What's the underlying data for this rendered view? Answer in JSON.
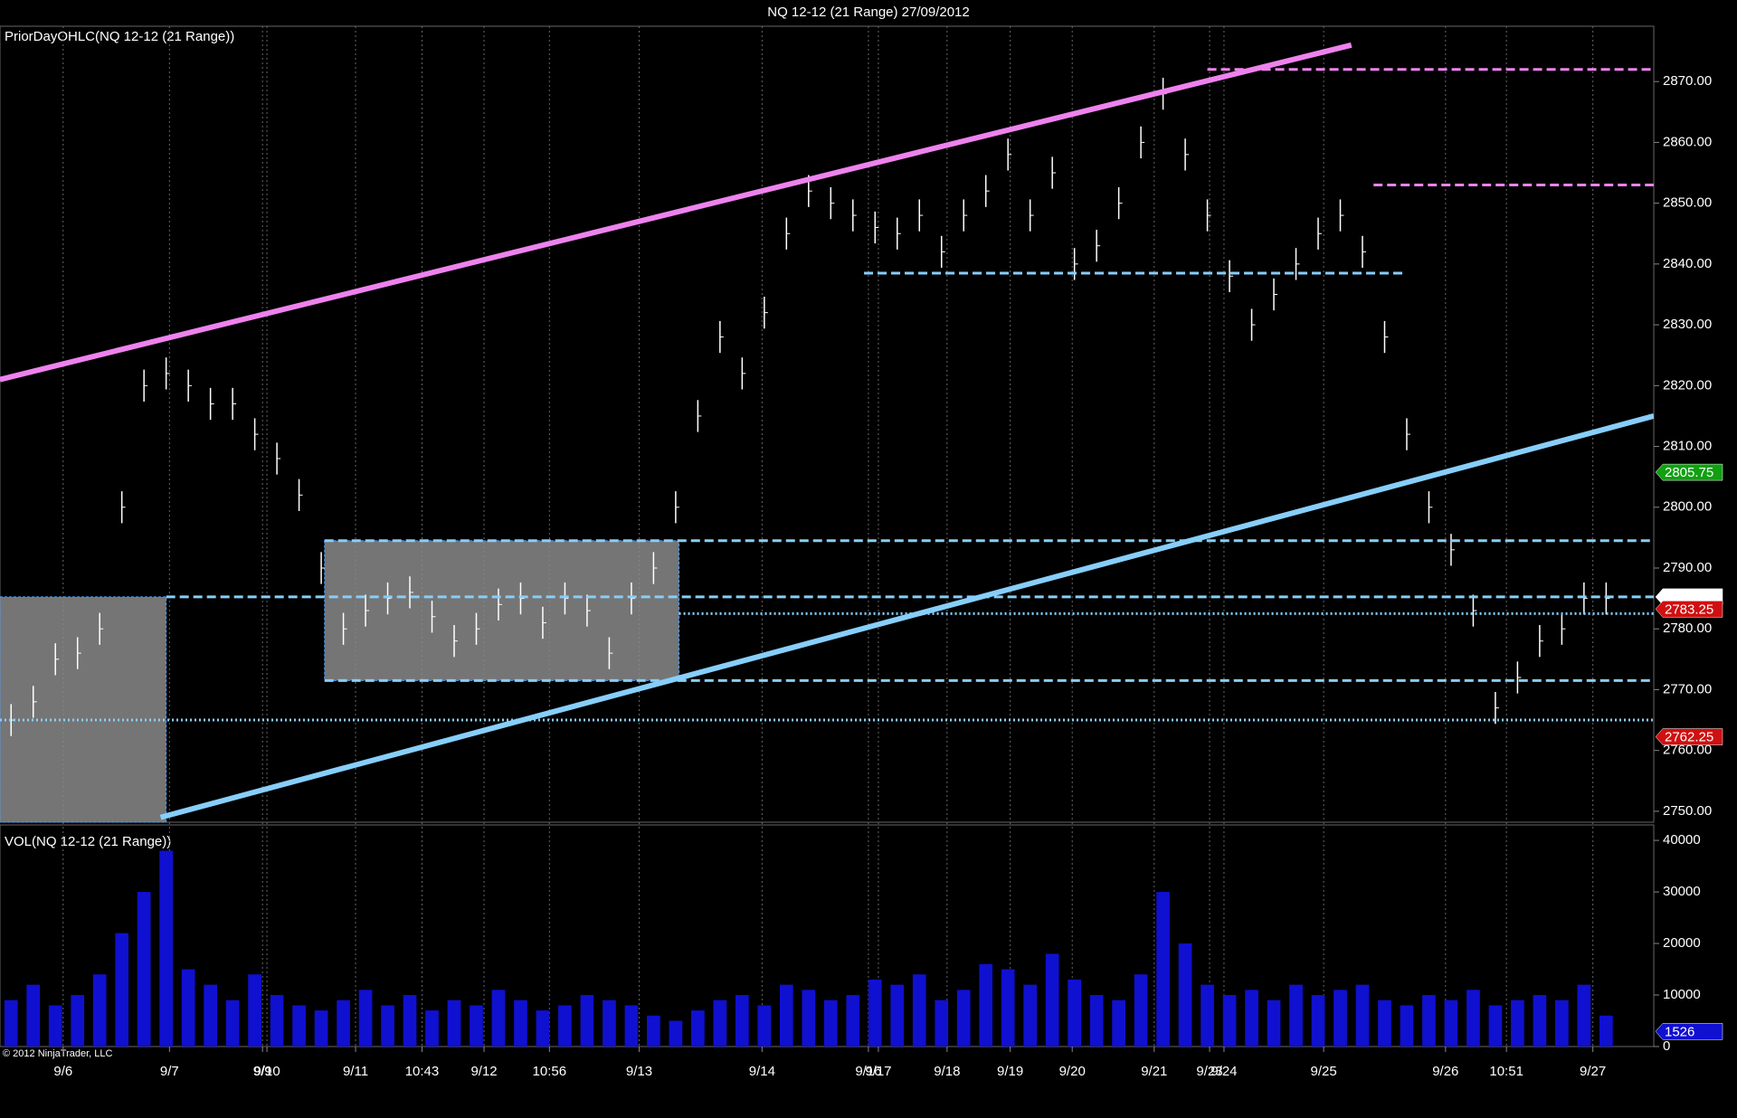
{
  "chart_data": {
    "type": "ohlc",
    "title": "NQ 12-12 (21 Range)  27/09/2012",
    "price_panel_label": "PriorDayOHLC(NQ 12-12 (21 Range))",
    "volume_panel_label": "VOL(NQ 12-12 (21 Range))",
    "copyright": "© 2012 NinjaTrader, LLC",
    "bar_range": 5.25,
    "color": "#ffffff",
    "volume_color": "#1010d0",
    "xlim": [
      0,
      74.65
    ],
    "xticks": [
      {
        "value": 2.85,
        "label": "9/6"
      },
      {
        "value": 7.65,
        "label": "9/7"
      },
      {
        "value": 11.85,
        "label": "9/9"
      },
      {
        "value": 12.05,
        "label": "9/10"
      },
      {
        "value": 16.05,
        "label": "9/11"
      },
      {
        "value": 19.05,
        "label": "10:43"
      },
      {
        "value": 21.85,
        "label": "9/12"
      },
      {
        "value": 24.8,
        "label": "10:56"
      },
      {
        "value": 28.85,
        "label": "9/13"
      },
      {
        "value": 34.4,
        "label": "9/14"
      },
      {
        "value": 39.2,
        "label": "9/16"
      },
      {
        "value": 39.65,
        "label": "9/17"
      },
      {
        "value": 42.75,
        "label": "9/18"
      },
      {
        "value": 45.6,
        "label": "9/19"
      },
      {
        "value": 48.4,
        "label": "9/20"
      },
      {
        "value": 52.1,
        "label": "9/21"
      },
      {
        "value": 54.6,
        "label": "9/23"
      },
      {
        "value": 55.25,
        "label": "9/24"
      },
      {
        "value": 59.75,
        "label": "9/25"
      },
      {
        "value": 65.25,
        "label": "9/26"
      },
      {
        "value": 68,
        "label": "10:51"
      },
      {
        "value": 71.9,
        "label": "9/27"
      }
    ],
    "values": [
      2765,
      2768,
      2775,
      2776,
      2780,
      2800,
      2820,
      2822,
      2820,
      2817,
      2817,
      2812,
      2808,
      2802,
      2790,
      2780,
      2783,
      2785,
      2786,
      2782,
      2778,
      2780,
      2784,
      2785,
      2781,
      2785,
      2783,
      2776,
      2785,
      2790,
      2800,
      2815,
      2828,
      2822,
      2832,
      2845,
      2852,
      2850,
      2848,
      2846,
      2845,
      2848,
      2842,
      2848,
      2852,
      2858,
      2848,
      2855,
      2840,
      2843,
      2850,
      2860,
      2868,
      2858,
      2848,
      2838,
      2830,
      2835,
      2840,
      2845,
      2848,
      2842,
      2828,
      2812,
      2800,
      2793,
      2783,
      2767,
      2772,
      2778,
      2780,
      2785,
      2785
    ],
    "volumes": [
      9000,
      12000,
      8000,
      10000,
      14000,
      22000,
      30000,
      38000,
      15000,
      12000,
      9000,
      14000,
      10000,
      8000,
      7000,
      9000,
      11000,
      8000,
      10000,
      7000,
      9000,
      8000,
      11000,
      9000,
      7000,
      8000,
      10000,
      9000,
      8000,
      6000,
      5000,
      7000,
      9000,
      10000,
      8000,
      12000,
      11000,
      9000,
      10000,
      13000,
      12000,
      14000,
      9000,
      11000,
      16000,
      15000,
      12000,
      18000,
      13000,
      10000,
      9000,
      14000,
      30000,
      20000,
      12000,
      10000,
      11000,
      9000,
      12000,
      10000,
      11000,
      12000,
      9000,
      8000,
      10000,
      9000,
      11000,
      8000,
      9000,
      10000,
      9000,
      12000,
      6000
    ],
    "ylim": [
      2748.2,
      2879.1
    ],
    "yticks": [
      {
        "value": 2750,
        "label": "2750.00"
      },
      {
        "value": 2760,
        "label": "2760.00"
      },
      {
        "value": 2770,
        "label": "2770.00"
      },
      {
        "value": 2780,
        "label": "2780.00"
      },
      {
        "value": 2790,
        "label": "2790.00"
      },
      {
        "value": 2800,
        "label": "2800.00"
      },
      {
        "value": 2810,
        "label": "2810.00"
      },
      {
        "value": 2820,
        "label": "2820.00"
      },
      {
        "value": 2830,
        "label": "2830.00"
      },
      {
        "value": 2840,
        "label": "2840.00"
      },
      {
        "value": 2850,
        "label": "2850.00"
      },
      {
        "value": 2860,
        "label": "2860.00"
      },
      {
        "value": 2870,
        "label": "2870.00"
      }
    ],
    "volume_ylim": [
      0,
      43000
    ],
    "volume_yticks": [
      0,
      10000,
      20000,
      30000,
      40000
    ],
    "levels": [
      {
        "value": 2872,
        "from": 54.5,
        "to": 74.65,
        "style": "dash",
        "color": "#ee82ee"
      },
      {
        "value": 2853,
        "from": 62,
        "to": 74.65,
        "style": "dash",
        "color": "#ee82ee"
      },
      {
        "value": 2838.5,
        "from": 39,
        "to": 63.5,
        "style": "dash",
        "color": "#87cefa"
      },
      {
        "value": 2794.5,
        "from": 14.65,
        "to": 74.65,
        "style": "dash",
        "color": "#87cefa"
      },
      {
        "value": 2785.25,
        "from": 7.5,
        "to": 74.65,
        "style": "dash",
        "color": "#87cefa"
      },
      {
        "value": 2782.5,
        "from": 30.65,
        "to": 74.65,
        "style": "dot",
        "color": "#87cefa"
      },
      {
        "value": 2771.5,
        "from": 14.65,
        "to": 74.65,
        "style": "dash",
        "color": "#87cefa"
      },
      {
        "value": 2765,
        "from": 0,
        "to": 74.65,
        "style": "dot",
        "color": "#87cefa"
      }
    ],
    "trendlines": [
      {
        "x": [
          0,
          61
        ],
        "y": [
          2821,
          2876
        ],
        "color": "#ee82ee"
      },
      {
        "x": [
          7.25,
          74.65
        ],
        "y": [
          2749,
          2815
        ],
        "color": "#87cefa"
      }
    ],
    "boxes": [
      {
        "x": [
          0,
          7.5
        ],
        "y": [
          2748.2,
          2785.25
        ]
      },
      {
        "x": [
          14.65,
          30.65
        ],
        "y": [
          2771.5,
          2794.5
        ]
      }
    ],
    "price_markers": [
      {
        "value": 2805.75,
        "color": "#10a010"
      },
      {
        "value": 2785.25,
        "color": "#ffffff"
      },
      {
        "value": 2783.25,
        "color": "#d01010"
      },
      {
        "value": 2762.25,
        "color": "#d01010"
      }
    ],
    "volume_marker": {
      "value": 1526,
      "color": "#1010d0"
    }
  }
}
